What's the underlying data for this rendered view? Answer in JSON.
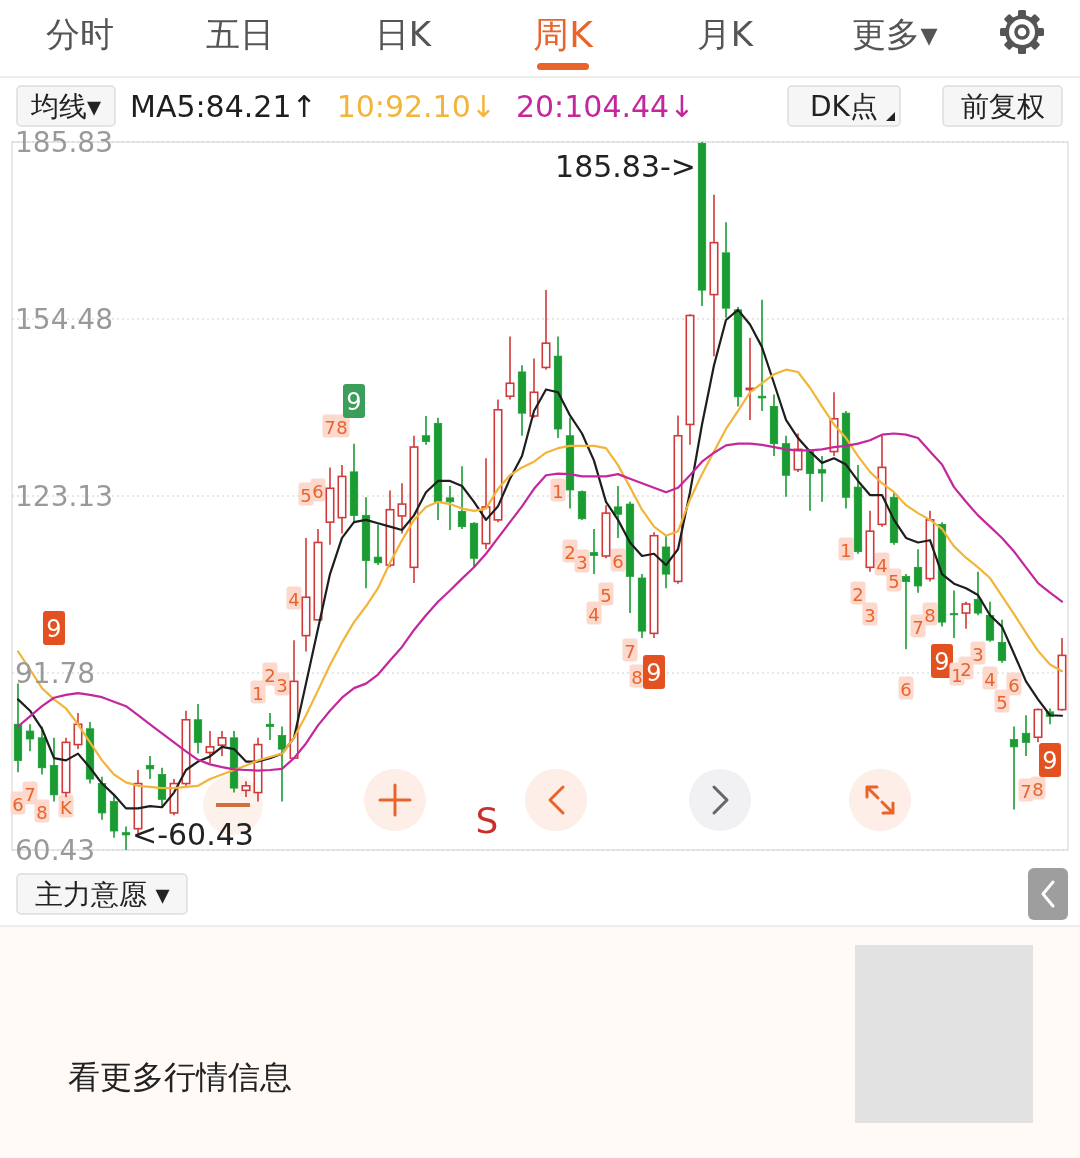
{
  "chart_data": {
    "type": "candlestick",
    "title": "周K",
    "categories": [
      null,
      null,
      null,
      null,
      null,
      null,
      null,
      null,
      null,
      null,
      null,
      null,
      null,
      null,
      null,
      null,
      null,
      null,
      null,
      null,
      null,
      null,
      null,
      null,
      null,
      null,
      null,
      null,
      null,
      null,
      null,
      null,
      null,
      null,
      null,
      null,
      null,
      null,
      null,
      null,
      null,
      null,
      null,
      null,
      null,
      null,
      null,
      null,
      null,
      null,
      null,
      null,
      null,
      null,
      null,
      null,
      null,
      null,
      null,
      null,
      null,
      null,
      null,
      null,
      null,
      null,
      null,
      null,
      null,
      null,
      null,
      null,
      null,
      null,
      null,
      null,
      null,
      null,
      null,
      null,
      null,
      null,
      null,
      null,
      null,
      null,
      null,
      null
    ],
    "ohlc": [
      [
        82.7,
        89.9,
        74.2,
        76.3
      ],
      [
        81.5,
        82.7,
        77.9,
        80.1
      ],
      [
        80.3,
        82.3,
        73.8,
        75.0
      ],
      [
        75.4,
        80.3,
        69.0,
        70.2
      ],
      [
        70.6,
        80.3,
        69.8,
        79.5
      ],
      [
        79.1,
        84.7,
        78.3,
        82.7
      ],
      [
        81.9,
        83.1,
        72.2,
        73.0
      ],
      [
        72.2,
        73.4,
        65.8,
        67.0
      ],
      [
        69.0,
        70.2,
        62.6,
        63.8
      ],
      [
        63.5,
        64.6,
        60.43,
        63.1
      ],
      [
        64.2,
        74.6,
        63.4,
        72.2
      ],
      [
        75.4,
        77.1,
        73.0,
        74.8
      ],
      [
        73.8,
        75.0,
        68.2,
        69.4
      ],
      [
        67.0,
        73.0,
        66.6,
        72.2
      ],
      [
        72.2,
        85.1,
        71.4,
        83.5
      ],
      [
        83.5,
        86.3,
        77.5,
        79.5
      ],
      [
        77.7,
        81.5,
        75.8,
        78.7
      ],
      [
        79.0,
        81.5,
        77.1,
        80.3
      ],
      [
        80.3,
        81.5,
        70.6,
        71.4
      ],
      [
        71.0,
        72.6,
        69.8,
        71.8
      ],
      [
        70.6,
        80.3,
        69.0,
        79.1
      ],
      [
        82.7,
        84.7,
        79.9,
        82.3
      ],
      [
        80.7,
        82.3,
        69.0,
        78.3
      ],
      [
        76.7,
        97.6,
        76.7,
        90.3
      ],
      [
        98.4,
        115.7,
        95.6,
        105.2
      ],
      [
        101.2,
        117.3,
        101.2,
        114.9
      ],
      [
        118.5,
        128.2,
        114.5,
        124.5
      ],
      [
        119.3,
        128.6,
        116.5,
        126.6
      ],
      [
        127.4,
        132.4,
        118.3,
        119.7
      ],
      [
        119.7,
        122.9,
        106.8,
        111.7
      ],
      [
        112.3,
        118.1,
        110.9,
        111.3
      ],
      [
        110.9,
        124.1,
        110.5,
        120.7
      ],
      [
        119.6,
        125.4,
        116.5,
        121.7
      ],
      [
        110.5,
        133.8,
        107.7,
        131.8
      ],
      [
        133.8,
        137.3,
        132.2,
        132.8
      ],
      [
        136.0,
        137.0,
        118.9,
        122.1
      ],
      [
        122.8,
        124.9,
        117.1,
        122.1
      ],
      [
        120.4,
        128.4,
        117.3,
        117.7
      ],
      [
        118.3,
        118.5,
        110.5,
        112.1
      ],
      [
        114.7,
        129.8,
        113.7,
        121.2
      ],
      [
        118.9,
        140.2,
        118.5,
        138.4
      ],
      [
        140.8,
        151.4,
        140.2,
        143.1
      ],
      [
        145.1,
        146.3,
        133.8,
        137.8
      ],
      [
        137.3,
        147.5,
        137.0,
        141.5
      ],
      [
        145.9,
        159.6,
        145.5,
        150.2
      ],
      [
        147.9,
        151.4,
        133.4,
        135.0
      ],
      [
        133.8,
        137.0,
        120.9,
        124.2
      ],
      [
        123.9,
        124.1,
        118.9,
        119.1
      ],
      [
        113.1,
        117.3,
        109.3,
        112.6
      ],
      [
        112.5,
        121.5,
        112.1,
        120.1
      ],
      [
        121.2,
        124.9,
        115.7,
        119.9
      ],
      [
        121.7,
        122.1,
        102.4,
        108.9
      ],
      [
        108.6,
        109.3,
        98.0,
        99.2
      ],
      [
        98.8,
        116.7,
        98.0,
        116.1
      ],
      [
        114.1,
        116.1,
        106.8,
        109.3
      ],
      [
        108.0,
        137.4,
        107.6,
        133.8
      ],
      [
        135.8,
        155.3,
        132.2,
        155.1
      ],
      [
        185.6,
        185.83,
        156.8,
        159.6
      ],
      [
        158.8,
        176.5,
        147.9,
        168.0
      ],
      [
        166.2,
        171.6,
        154.7,
        156.4
      ],
      [
        156.1,
        156.6,
        139.0,
        140.7
      ],
      [
        142.0,
        151.1,
        136.6,
        142.2
      ],
      [
        140.8,
        157.9,
        138.2,
        140.5
      ],
      [
        139.0,
        141.1,
        130.2,
        132.4
      ],
      [
        132.4,
        133.8,
        123.0,
        126.8
      ],
      [
        127.8,
        134.2,
        127.4,
        131.4
      ],
      [
        131.0,
        131.4,
        120.5,
        127.1
      ],
      [
        127.8,
        130.2,
        122.1,
        127.2
      ],
      [
        131.0,
        141.5,
        130.2,
        136.8
      ],
      [
        137.8,
        138.2,
        120.9,
        122.9
      ],
      [
        124.7,
        128.6,
        112.9,
        113.3
      ],
      [
        110.5,
        120.5,
        109.7,
        116.9
      ],
      [
        118.1,
        133.8,
        117.7,
        128.2
      ],
      [
        122.9,
        123.7,
        114.5,
        114.9
      ],
      [
        108.9,
        109.3,
        96.0,
        108.0
      ],
      [
        110.5,
        113.7,
        106.0,
        107.2
      ],
      [
        108.5,
        120.5,
        108.0,
        118.9
      ],
      [
        118.1,
        118.5,
        100.0,
        100.8
      ],
      [
        102.3,
        106.4,
        98.0,
        102.1
      ],
      [
        102.4,
        104.4,
        99.6,
        104.0
      ],
      [
        104.8,
        109.7,
        102.0,
        102.4
      ],
      [
        102.0,
        104.4,
        97.3,
        97.6
      ],
      [
        97.2,
        101.2,
        93.6,
        94.0
      ],
      [
        80.0,
        82.3,
        67.6,
        78.7
      ],
      [
        81.1,
        84.3,
        77.1,
        79.5
      ],
      [
        80.4,
        85.5,
        79.5,
        85.3
      ],
      [
        84.9,
        85.5,
        82.7,
        84.1
      ],
      [
        85.3,
        98.0,
        85.1,
        94.9
      ]
    ],
    "colors": [
      "#1a9c33",
      "#1a9c33",
      "#1a9c33",
      "#1a9c33",
      "#d23a3a",
      "#d23a3a",
      "#1a9c33",
      "#1a9c33",
      "#1a9c33",
      "#1a9c33",
      "#d23a3a",
      "#1a9c33",
      "#1a9c33",
      "#d23a3a",
      "#d23a3a",
      "#1a9c33",
      "#d23a3a",
      "#d23a3a",
      "#1a9c33",
      "#d23a3a",
      "#d23a3a",
      "#1a9c33",
      "#1a9c33",
      "#d23a3a",
      "#d23a3a",
      "#d23a3a",
      "#d23a3a",
      "#d23a3a",
      "#1a9c33",
      "#1a9c33",
      "#1a9c33",
      "#d23a3a",
      "#d23a3a",
      "#d23a3a",
      "#1a9c33",
      "#1a9c33",
      "#1a9c33",
      "#1a9c33",
      "#1a9c33",
      "#d23a3a",
      "#d23a3a",
      "#d23a3a",
      "#1a9c33",
      "#d23a3a",
      "#d23a3a",
      "#1a9c33",
      "#1a9c33",
      "#1a9c33",
      "#1a9c33",
      "#d23a3a",
      "#1a9c33",
      "#1a9c33",
      "#1a9c33",
      "#d23a3a",
      "#1a9c33",
      "#d23a3a",
      "#d23a3a",
      "#1a9c33",
      "#d23a3a",
      "#1a9c33",
      "#1a9c33",
      "#d23a3a",
      "#1a9c33",
      "#1a9c33",
      "#1a9c33",
      "#d23a3a",
      "#1a9c33",
      "#1a9c33",
      "#d23a3a",
      "#1a9c33",
      "#1a9c33",
      "#d23a3a",
      "#d23a3a",
      "#1a9c33",
      "#1a9c33",
      "#1a9c33",
      "#d23a3a",
      "#1a9c33",
      "#1a9c33",
      "#d23a3a",
      "#1a9c33",
      "#1a9c33",
      "#1a9c33",
      "#1a9c33",
      "#1a9c33",
      "#d23a3a",
      "#1a9c33",
      "#d23a3a"
    ],
    "series": [
      {
        "name": "MA5:84.21↑",
        "type": "line",
        "color": "#1e1e1e",
        "values": [
          87.1,
          85.1,
          81.9,
          76.7,
          76.3,
          77.5,
          75.0,
          72.2,
          70.2,
          67.8,
          67.8,
          68.2,
          68.0,
          70.6,
          74.6,
          76.1,
          77.0,
          78.7,
          78.3,
          76.1,
          76.1,
          76.7,
          77.5,
          80.3,
          89.9,
          99.6,
          109.3,
          115.7,
          118.5,
          118.9,
          118.3,
          117.7,
          117.1,
          119.7,
          123.8,
          125.8,
          125.8,
          124.9,
          122.1,
          118.9,
          121.3,
          126.2,
          130.2,
          138.2,
          142.0,
          141.5,
          137.4,
          134.2,
          129.4,
          122.1,
          118.9,
          114.9,
          112.5,
          112.9,
          110.9,
          113.7,
          123.8,
          135.8,
          146.3,
          154.3,
          156.1,
          153.5,
          149.5,
          143.1,
          136.6,
          133.4,
          131.0,
          129.0,
          129.8,
          128.7,
          125.8,
          123.3,
          123.3,
          118.9,
          115.7,
          114.9,
          115.3,
          109.3,
          107.6,
          106.8,
          105.6,
          102.0,
          100.0,
          95.2,
          90.3,
          87.1,
          84.3,
          84.21
        ]
      },
      {
        "name": "10:92.10↓",
        "type": "line",
        "color": "#f2b53a",
        "values": [
          95.6,
          92.4,
          89.1,
          87.1,
          85.5,
          82.7,
          79.5,
          76.3,
          73.8,
          72.4,
          71.8,
          71.6,
          71.4,
          71.4,
          71.6,
          71.8,
          73.0,
          73.8,
          74.6,
          75.4,
          76.3,
          76.9,
          77.5,
          80.3,
          84.3,
          88.7,
          93.2,
          97.2,
          100.8,
          103.6,
          106.8,
          111.3,
          115.3,
          118.9,
          121.2,
          122.1,
          121.7,
          120.9,
          120.5,
          120.9,
          124.4,
          126.8,
          128.2,
          129.2,
          130.8,
          131.6,
          132.0,
          132.0,
          132.0,
          131.6,
          128.6,
          124.7,
          120.7,
          117.7,
          116.1,
          116.9,
          122.5,
          127.0,
          131.0,
          135.0,
          138.2,
          141.5,
          143.1,
          144.7,
          145.5,
          145.1,
          142.3,
          139.0,
          135.8,
          133.4,
          130.2,
          127.4,
          125.4,
          123.8,
          121.5,
          120.1,
          118.9,
          117.3,
          114.2,
          112.2,
          110.5,
          108.6,
          105.4,
          102.2,
          98.9,
          95.7,
          93.3,
          92.1
        ]
      },
      {
        "name": "20:104.44↓",
        "type": "line",
        "color": "#c4279c",
        "values": [
          82.3,
          84.1,
          85.9,
          87.4,
          87.9,
          88.2,
          87.9,
          87.5,
          86.7,
          85.9,
          84.3,
          82.7,
          81.1,
          79.5,
          77.9,
          76.4,
          75.6,
          75.1,
          74.7,
          74.6,
          74.5,
          74.6,
          74.8,
          76.7,
          79.3,
          82.5,
          85.1,
          87.4,
          89.1,
          89.9,
          91.5,
          94.0,
          96.4,
          99.4,
          102.0,
          104.4,
          106.4,
          108.5,
          110.5,
          112.9,
          115.7,
          118.5,
          121.3,
          124.4,
          126.8,
          127.1,
          127.0,
          126.6,
          126.6,
          126.6,
          127.0,
          126.2,
          125.4,
          124.6,
          123.8,
          124.6,
          126.8,
          129.2,
          130.8,
          132.1,
          132.4,
          132.4,
          132.2,
          131.8,
          131.4,
          131.2,
          131.2,
          131.4,
          131.8,
          132.0,
          132.4,
          133.0,
          134.0,
          134.2,
          134.0,
          133.4,
          131.0,
          128.7,
          124.7,
          122.1,
          119.7,
          117.7,
          115.7,
          113.3,
          110.5,
          107.7,
          106.0,
          104.44
        ]
      }
    ],
    "ylim": [
      60.43,
      185.83
    ],
    "yticks": [
      60.43,
      91.78,
      123.13,
      154.48,
      185.83
    ],
    "grid": "y",
    "legend": "top left",
    "tick_labels": "y",
    "annotations": [
      "分时",
      "五日",
      "日K",
      "月K",
      "更多▾",
      "均线▾",
      "DK点",
      "前复权",
      "主力意愿 ▾",
      "S",
      "看更多行情信息",
      "185.83->",
      "<-60.43",
      "6",
      "7",
      "8",
      "9",
      "K",
      "1",
      "2",
      "3",
      "4",
      "5",
      "6",
      "7",
      "8",
      "9",
      "1",
      "2",
      "3",
      "4",
      "5",
      "6",
      "7",
      "8",
      "9",
      "1",
      "2",
      "3",
      "4",
      "5",
      "6",
      "7",
      "8",
      "9",
      "1",
      "2",
      "3",
      "4",
      "5",
      "6",
      "7",
      "8",
      "9"
    ]
  }
}
